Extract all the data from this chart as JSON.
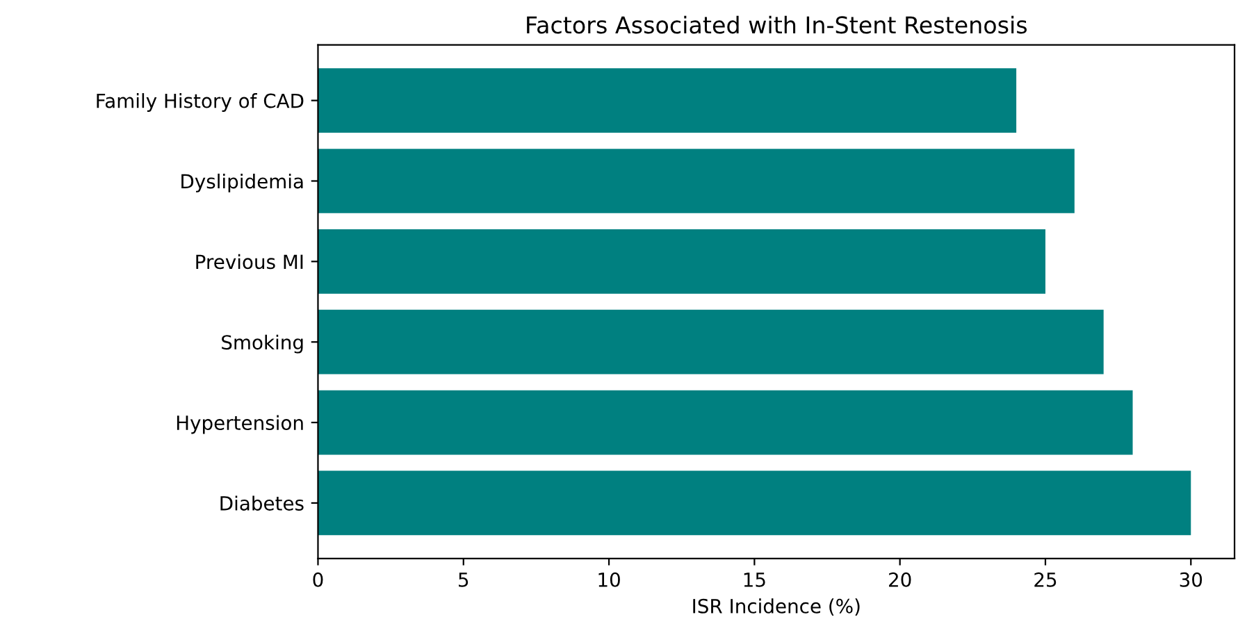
{
  "chart_data": {
    "type": "bar",
    "orientation": "horizontal",
    "title": "Factors Associated with In-Stent Restenosis",
    "xlabel": "ISR Incidence (%)",
    "categories": [
      "Family History of CAD",
      "Dyslipidemia",
      "Previous MI",
      "Smoking",
      "Hypertension",
      "Diabetes"
    ],
    "values": [
      24,
      26,
      25,
      27,
      28,
      30
    ],
    "color": "#008080",
    "xlim": [
      0,
      31.5
    ],
    "xticks": [
      0,
      5,
      10,
      15,
      20,
      25,
      30
    ],
    "grid": false
  }
}
